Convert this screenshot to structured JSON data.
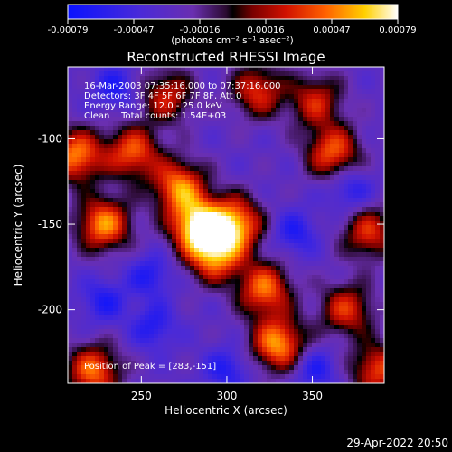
{
  "chart_data": {
    "type": "heatmap",
    "title": "Reconstructed RHESSI Image",
    "xlabel": "Heliocentric X (arcsec)",
    "ylabel": "Heliocentric Y (arcsec)",
    "xlim": [
      207,
      392
    ],
    "ylim": [
      -243,
      -58
    ],
    "x_ticks": [
      250,
      300,
      350
    ],
    "y_ticks": [
      -100,
      -150,
      -200
    ],
    "colorbar": {
      "range": [
        -0.00079,
        0.00079
      ],
      "ticks": [
        "-0.00079",
        "-0.00047",
        "-0.00016",
        "0.00016",
        "0.00047",
        "0.00079"
      ],
      "unit": "(photons cm⁻² s⁻¹ asec⁻²)",
      "colormap": "blue-purple-red-yellow-white"
    },
    "annotations": [
      "16-Mar-2003 07:35:16.000 to 07:37:16.000",
      "Detectors: 3F 4F 5F 6F 7F 8F, Att 0",
      "Energy Range: 12.0 - 25.0 keV",
      "Clean    Total counts: 1.54E+03"
    ],
    "peak_label": "Position of Peak = [283,-151]",
    "peak_position": [
      283,
      -151
    ],
    "bright_sources": [
      {
        "x": 283,
        "y": -151,
        "intensity": 1.0
      },
      {
        "x": 305,
        "y": -150,
        "intensity": 0.85
      },
      {
        "x": 293,
        "y": -168,
        "intensity": 0.8
      },
      {
        "x": 272,
        "y": -128,
        "intensity": 0.78
      },
      {
        "x": 228,
        "y": -150,
        "intensity": 0.82
      },
      {
        "x": 212,
        "y": -110,
        "intensity": 0.8
      },
      {
        "x": 245,
        "y": -108,
        "intensity": 0.7
      },
      {
        "x": 322,
        "y": -188,
        "intensity": 0.75
      },
      {
        "x": 330,
        "y": -220,
        "intensity": 0.85
      },
      {
        "x": 318,
        "y": -72,
        "intensity": 0.6
      },
      {
        "x": 352,
        "y": -78,
        "intensity": 0.55
      },
      {
        "x": 362,
        "y": -108,
        "intensity": 0.7
      },
      {
        "x": 383,
        "y": -155,
        "intensity": 0.6
      },
      {
        "x": 370,
        "y": -200,
        "intensity": 0.6
      },
      {
        "x": 388,
        "y": -235,
        "intensity": 0.65
      },
      {
        "x": 222,
        "y": -236,
        "intensity": 0.75
      },
      {
        "x": 265,
        "y": -75,
        "intensity": 0.55
      }
    ],
    "dark_regions": [
      {
        "x": 228,
        "y": -195
      },
      {
        "x": 257,
        "y": -210
      },
      {
        "x": 255,
        "y": -180
      },
      {
        "x": 340,
        "y": -155
      },
      {
        "x": 372,
        "y": -130
      },
      {
        "x": 235,
        "y": -70
      },
      {
        "x": 300,
        "y": -235
      },
      {
        "x": 352,
        "y": -235
      }
    ]
  },
  "footer": {
    "timestamp": "29-Apr-2022 20:50"
  }
}
